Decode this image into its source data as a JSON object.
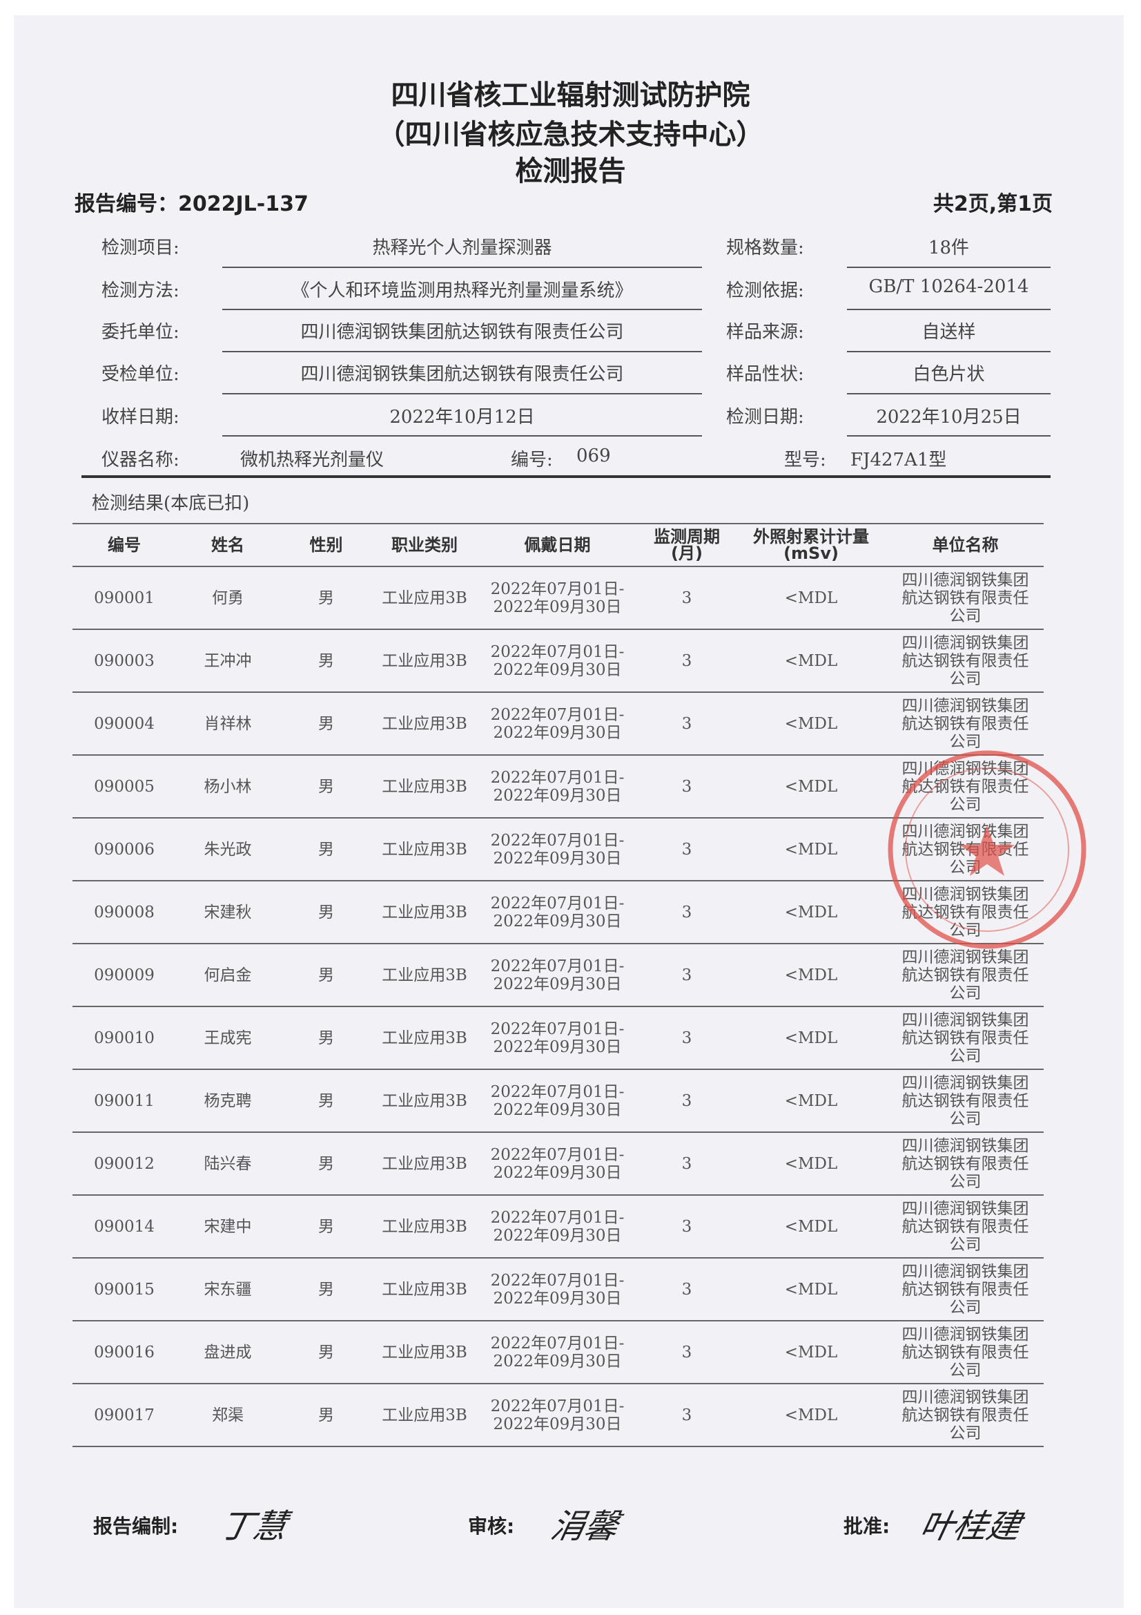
{
  "title": {
    "line1": "四川省核工业辐射测试防护院",
    "line2": "（四川省核应急技术支持中心）",
    "line3": "检测报告"
  },
  "report_number": "报告编号：2022JL-137",
  "page_info": "共2页,第1页",
  "info": {
    "item_label": "检测项目:",
    "item_value": "热释光个人剂量探测器",
    "qty_label": "规格数量:",
    "qty_value": "18件",
    "method_label": "检测方法:",
    "method_value": "《个人和环境监测用热释光剂量测量系统》",
    "basis_label": "检测依据:",
    "basis_value": "GB/T 10264-2014",
    "client_label": "委托单位:",
    "client_value": "四川德润钢铁集团航达钢铁有限责任公司",
    "source_label": "样品来源:",
    "source_value": "自送样",
    "inspected_label": "受检单位:",
    "inspected_value": "四川德润钢铁集团航达钢铁有限责任公司",
    "shape_label": "样品性状:",
    "shape_value": "白色片状",
    "receive_label": "收样日期:",
    "receive_value": "2022年10月12日",
    "test_date_label": "检测日期:",
    "test_date_value": "2022年10月25日",
    "instrument_label": "仪器名称:",
    "instrument_value": "微机热释光剂量仪",
    "serial_label": "编号:",
    "serial_value": "069",
    "model_label": "型号:",
    "model_value": "FJ427A1型"
  },
  "results_caption": "检测结果(本底已扣)",
  "table": {
    "headers": [
      "编号",
      "姓名",
      "性别",
      "职业类别",
      "佩戴日期",
      "监测周期\n(月)",
      "外照射累计计量\n(mSv)",
      "单位名称"
    ],
    "rows": [
      [
        "090001",
        "何勇",
        "男",
        "工业应用3B",
        "2022年07月01日-\n2022年09月30日",
        "3",
        "<MDL",
        "四川德润钢铁集团\n航达钢铁有限责任\n公司"
      ],
      [
        "090003",
        "王冲冲",
        "男",
        "工业应用3B",
        "2022年07月01日-\n2022年09月30日",
        "3",
        "<MDL",
        "四川德润钢铁集团\n航达钢铁有限责任\n公司"
      ],
      [
        "090004",
        "肖祥林",
        "男",
        "工业应用3B",
        "2022年07月01日-\n2022年09月30日",
        "3",
        "<MDL",
        "四川德润钢铁集团\n航达钢铁有限责任\n公司"
      ],
      [
        "090005",
        "杨小林",
        "男",
        "工业应用3B",
        "2022年07月01日-\n2022年09月30日",
        "3",
        "<MDL",
        "四川德润钢铁集团\n航达钢铁有限责任\n公司"
      ],
      [
        "090006",
        "朱光政",
        "男",
        "工业应用3B",
        "2022年07月01日-\n2022年09月30日",
        "3",
        "<MDL",
        "四川德润钢铁集团\n航达钢铁有限责任\n公司"
      ],
      [
        "090008",
        "宋建秋",
        "男",
        "工业应用3B",
        "2022年07月01日-\n2022年09月30日",
        "3",
        "<MDL",
        "四川德润钢铁集团\n航达钢铁有限责任\n公司"
      ],
      [
        "090009",
        "何启金",
        "男",
        "工业应用3B",
        "2022年07月01日-\n2022年09月30日",
        "3",
        "<MDL",
        "四川德润钢铁集团\n航达钢铁有限责任\n公司"
      ],
      [
        "090010",
        "王成宪",
        "男",
        "工业应用3B",
        "2022年07月01日-\n2022年09月30日",
        "3",
        "<MDL",
        "四川德润钢铁集团\n航达钢铁有限责任\n公司"
      ],
      [
        "090011",
        "杨克聘",
        "男",
        "工业应用3B",
        "2022年07月01日-\n2022年09月30日",
        "3",
        "<MDL",
        "四川德润钢铁集团\n航达钢铁有限责任\n公司"
      ],
      [
        "090012",
        "陆兴春",
        "男",
        "工业应用3B",
        "2022年07月01日-\n2022年09月30日",
        "3",
        "<MDL",
        "四川德润钢铁集团\n航达钢铁有限责任\n公司"
      ],
      [
        "090014",
        "宋建中",
        "男",
        "工业应用3B",
        "2022年07月01日-\n2022年09月30日",
        "3",
        "<MDL",
        "四川德润钢铁集团\n航达钢铁有限责任\n公司"
      ],
      [
        "090015",
        "宋东疆",
        "男",
        "工业应用3B",
        "2022年07月01日-\n2022年09月30日",
        "3",
        "<MDL",
        "四川德润钢铁集团\n航达钢铁有限责任\n公司"
      ],
      [
        "090016",
        "盘进成",
        "男",
        "工业应用3B",
        "2022年07月01日-\n2022年09月30日",
        "3",
        "<MDL",
        "四川德润钢铁集团\n航达钢铁有限责任\n公司"
      ],
      [
        "090017",
        "郑渠",
        "男",
        "工业应用3B",
        "2022年07月01日-\n2022年09月30日",
        "3",
        "<MDL",
        "四川德润钢铁集团\n航达钢铁有限责任\n公司"
      ]
    ]
  },
  "signatures": {
    "prepared_label": "报告编制:",
    "prepared_sig": "丁慧",
    "review_label": "审核:",
    "review_sig": "涓馨",
    "approve_label": "批准:",
    "approve_sig": "叶桂建"
  },
  "stamp": {
    "color": "#e0504a"
  }
}
